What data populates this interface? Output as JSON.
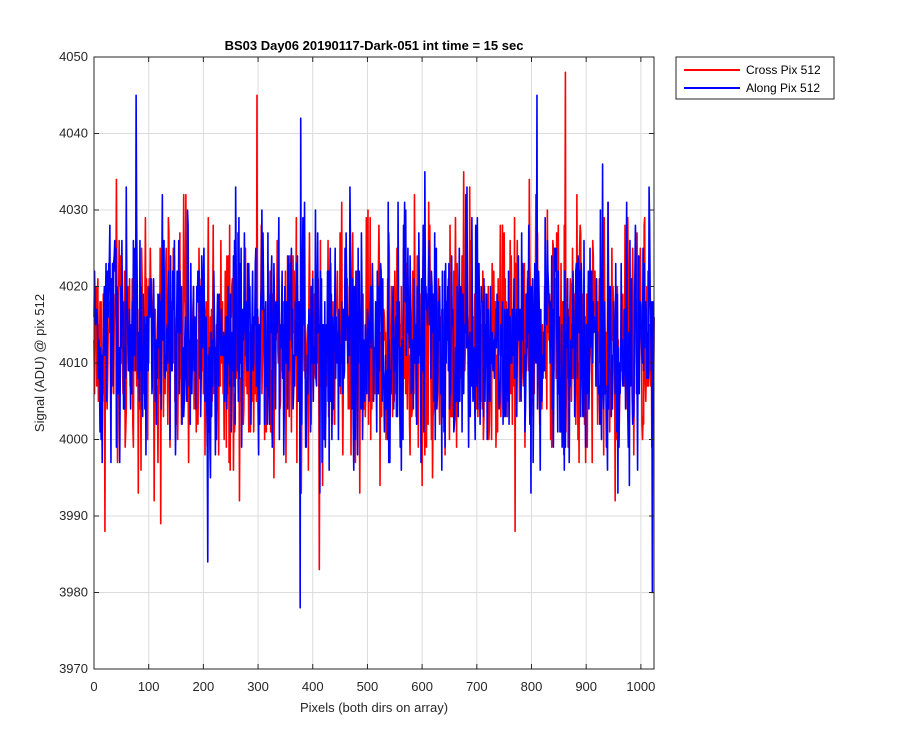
{
  "chart_data": {
    "type": "line",
    "title": "BS03 Day06 20190117-Dark-051 int time = 15 sec",
    "xlabel": "Pixels (both dirs on array)",
    "ylabel": "Signal (ADU) @ pix 512",
    "xlim": [
      0,
      1024
    ],
    "ylim": [
      3970,
      4050
    ],
    "xticks": [
      0,
      100,
      200,
      300,
      400,
      500,
      600,
      700,
      800,
      900,
      1000
    ],
    "yticks": [
      3970,
      3980,
      3990,
      4000,
      4010,
      4020,
      4030,
      4040,
      4050
    ],
    "grid": true,
    "legend_position": "top-right outside",
    "series_summary": {
      "x_range": [
        0,
        1024
      ],
      "typical_mean": 4013,
      "typical_band": [
        4003,
        4023
      ]
    },
    "series": [
      {
        "name": "Cross Pix 512",
        "color": "#ff0000",
        "noted_extremes": [
          {
            "x": 298,
            "y": 4045
          },
          {
            "x": 862,
            "y": 4048
          },
          {
            "x": 412,
            "y": 3983
          },
          {
            "x": 20,
            "y": 3988
          },
          {
            "x": 122,
            "y": 3989
          },
          {
            "x": 770,
            "y": 3988
          }
        ]
      },
      {
        "name": "Along Pix 512",
        "color": "#0000ff",
        "noted_extremes": [
          {
            "x": 77,
            "y": 4045
          },
          {
            "x": 810,
            "y": 4045
          },
          {
            "x": 378,
            "y": 4042
          },
          {
            "x": 377,
            "y": 3978
          },
          {
            "x": 208,
            "y": 3984
          },
          {
            "x": 1021,
            "y": 3980
          }
        ]
      }
    ]
  }
}
